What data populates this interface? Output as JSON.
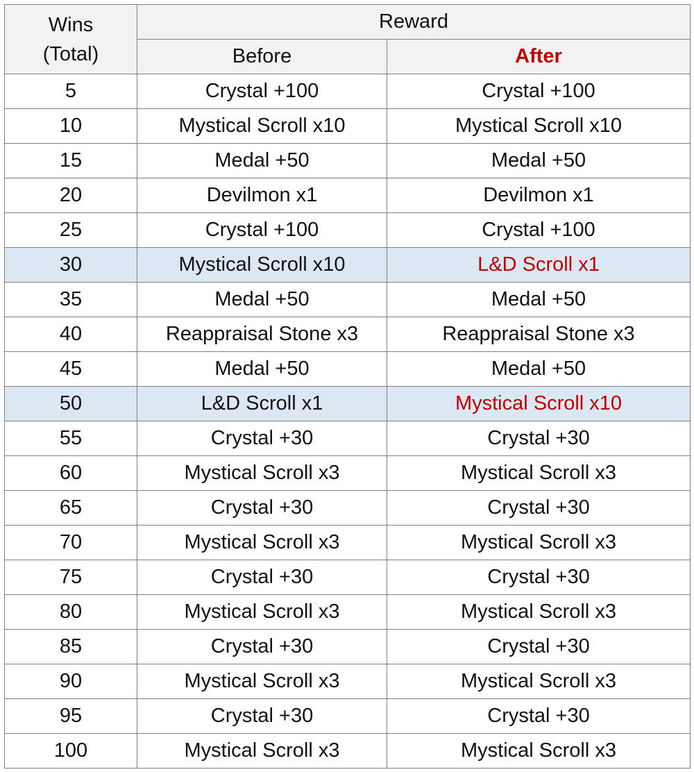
{
  "header": {
    "wins_line1": "Wins",
    "wins_line2": "(Total)",
    "reward": "Reward",
    "before": "Before",
    "after": "After"
  },
  "colors": {
    "header_bg": "#f2f2f2",
    "highlight_row_bg": "#dbe8f4",
    "changed_text": "#c00000",
    "border": "#7f7f7f"
  },
  "rows": [
    {
      "wins": "5",
      "before": "Crystal +100",
      "after": "Crystal +100",
      "changed": false
    },
    {
      "wins": "10",
      "before": "Mystical Scroll x10",
      "after": "Mystical Scroll x10",
      "changed": false
    },
    {
      "wins": "15",
      "before": "Medal +50",
      "after": "Medal +50",
      "changed": false
    },
    {
      "wins": "20",
      "before": "Devilmon x1",
      "after": "Devilmon x1",
      "changed": false
    },
    {
      "wins": "25",
      "before": "Crystal +100",
      "after": "Crystal +100",
      "changed": false
    },
    {
      "wins": "30",
      "before": "Mystical Scroll x10",
      "after": "L&D Scroll x1",
      "changed": true
    },
    {
      "wins": "35",
      "before": "Medal +50",
      "after": "Medal +50",
      "changed": false
    },
    {
      "wins": "40",
      "before": "Reappraisal Stone x3",
      "after": "Reappraisal Stone x3",
      "changed": false
    },
    {
      "wins": "45",
      "before": "Medal +50",
      "after": "Medal +50",
      "changed": false
    },
    {
      "wins": "50",
      "before": "L&D Scroll x1",
      "after": "Mystical Scroll x10",
      "changed": true
    },
    {
      "wins": "55",
      "before": "Crystal +30",
      "after": "Crystal +30",
      "changed": false
    },
    {
      "wins": "60",
      "before": "Mystical Scroll x3",
      "after": "Mystical Scroll x3",
      "changed": false
    },
    {
      "wins": "65",
      "before": "Crystal +30",
      "after": "Crystal +30",
      "changed": false
    },
    {
      "wins": "70",
      "before": "Mystical Scroll x3",
      "after": "Mystical Scroll x3",
      "changed": false
    },
    {
      "wins": "75",
      "before": "Crystal +30",
      "after": "Crystal +30",
      "changed": false
    },
    {
      "wins": "80",
      "before": "Mystical Scroll x3",
      "after": "Mystical Scroll x3",
      "changed": false
    },
    {
      "wins": "85",
      "before": "Crystal +30",
      "after": "Crystal +30",
      "changed": false
    },
    {
      "wins": "90",
      "before": "Mystical Scroll x3",
      "after": "Mystical Scroll x3",
      "changed": false
    },
    {
      "wins": "95",
      "before": "Crystal +30",
      "after": "Crystal +30",
      "changed": false
    },
    {
      "wins": "100",
      "before": "Mystical Scroll x3",
      "after": "Mystical Scroll x3",
      "changed": false
    }
  ]
}
